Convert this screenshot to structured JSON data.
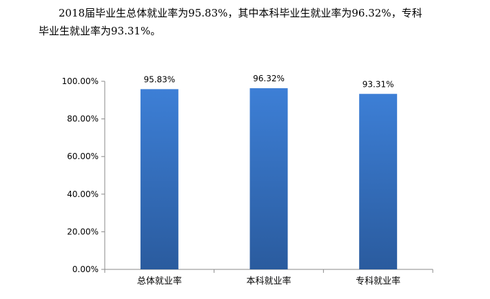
{
  "text": {
    "line1": "2018届毕业生总体就业率为95.83%，其中本科毕业生就业率为96.32%，专科",
    "line2": "毕业生就业率为93.31%。"
  },
  "chart_data": {
    "type": "bar",
    "categories": [
      "总体就业率",
      "本科就业率",
      "专科就业率"
    ],
    "values": [
      95.83,
      96.32,
      93.31
    ],
    "data_labels": [
      "95.83%",
      "96.32%",
      "93.31%"
    ],
    "yticks": [
      0,
      20,
      40,
      60,
      80,
      100
    ],
    "ytick_labels": [
      "0.00%",
      "20.00%",
      "40.00%",
      "60.00%",
      "80.00%",
      "100.00%"
    ],
    "ylim": [
      0,
      100
    ],
    "grid": false,
    "legend": "none",
    "bar_color_top": "#3d7fd6",
    "bar_color_bottom": "#2a5b9e"
  }
}
